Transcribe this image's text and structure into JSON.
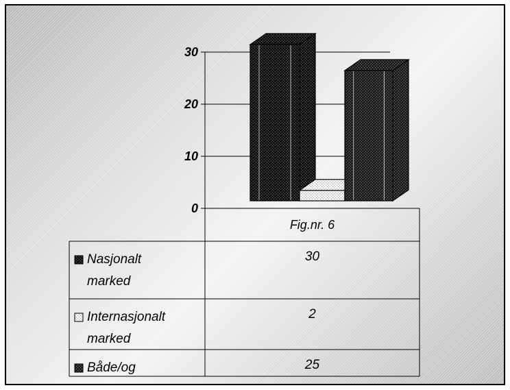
{
  "chart_data": {
    "type": "bar",
    "categories": [
      "Fig.nr. 6"
    ],
    "series": [
      {
        "name": "Nasjonalt marked",
        "values": [
          30
        ]
      },
      {
        "name": "Internasjonalt marked",
        "values": [
          2
        ]
      },
      {
        "name": "Både/og",
        "values": [
          25
        ]
      }
    ],
    "yticks": [
      "0",
      "10",
      "20",
      "30"
    ],
    "ylim": [
      0,
      30
    ],
    "grid": true,
    "legend": "data-table",
    "colors": [
      "#151515",
      "#efefef",
      "#2a2a2a"
    ]
  }
}
